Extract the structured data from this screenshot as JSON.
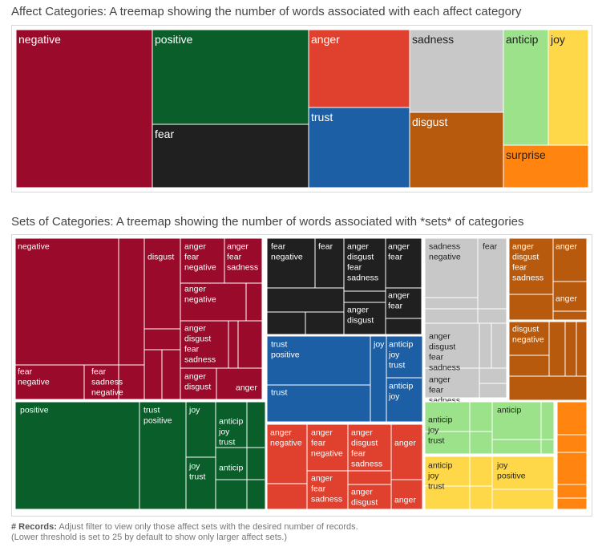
{
  "chart_data": [
    {
      "type": "treemap",
      "title": "Affect Categories: A treemap showing the number of words associated with each affect category",
      "nodes": [
        {
          "label": "negative",
          "color": "#9a0a2a",
          "text_color": "#ffffff",
          "size": 3324
        },
        {
          "label": "positive",
          "color": "#0a5e2a",
          "text_color": "#ffffff",
          "size": 2312
        },
        {
          "label": "fear",
          "color": "#202020",
          "text_color": "#ffffff",
          "size": 1476
        },
        {
          "label": "anger",
          "color": "#e0412f",
          "text_color": "#ffffff",
          "size": 1247
        },
        {
          "label": "trust",
          "color": "#1c5fa5",
          "text_color": "#ffffff",
          "size": 1231
        },
        {
          "label": "sadness",
          "color": "#c8c8c8",
          "text_color": "#222222",
          "size": 1191
        },
        {
          "label": "disgust",
          "color": "#b85a0d",
          "text_color": "#ffffff",
          "size": 1058
        },
        {
          "label": "anticip",
          "color": "#9be28a",
          "text_color": "#222222",
          "size": 839
        },
        {
          "label": "joy",
          "color": "#ffd84a",
          "text_color": "#222222",
          "size": 689
        },
        {
          "label": "surprise",
          "color": "#ff8510",
          "text_color": "#222222",
          "size": 534
        }
      ]
    },
    {
      "type": "treemap",
      "title": "Sets of Categories: A treemap showing the number of words associated with *sets* of categories",
      "groups": [
        {
          "name": "negative",
          "color": "#9a0a2a",
          "text_color": "#ffffff",
          "labels": [
            "negative",
            "disgust",
            "fear negative",
            "fear sadness negative",
            "anger fear negative",
            "anger fear sadness",
            "anger negative",
            "anger disgust fear sadness",
            "anger disgust",
            "anger"
          ]
        },
        {
          "name": "positive",
          "color": "#0a5e2a",
          "text_color": "#ffffff",
          "labels": [
            "positive",
            "trust positive",
            "joy",
            "anticip joy trust",
            "joy trust",
            "anticip"
          ]
        },
        {
          "name": "fear",
          "color": "#202020",
          "text_color": "#ffffff",
          "labels": [
            "fear negative",
            "fear",
            "anger disgust fear sadness",
            "anger fear",
            "anger fear",
            "anger disgust"
          ]
        },
        {
          "name": "trust",
          "color": "#1c5fa5",
          "text_color": "#ffffff",
          "labels": [
            "trust positive",
            "joy",
            "anticip joy trust",
            "trust",
            "anticip joy"
          ]
        },
        {
          "name": "anger",
          "color": "#e0412f",
          "text_color": "#ffffff",
          "labels": [
            "anger negative",
            "anger fear negative",
            "anger disgust fear sadness",
            "anger",
            "anger fear sadness",
            "anger disgust",
            "anger"
          ]
        },
        {
          "name": "sadness",
          "color": "#c8c8c8",
          "text_color": "#222222",
          "labels": [
            "sadness negative",
            "fear",
            "anger disgust fear sadness",
            "anger fear sadness"
          ]
        },
        {
          "name": "disgust",
          "color": "#b85a0d",
          "text_color": "#ffffff",
          "labels": [
            "anger disgust fear sadness",
            "anger",
            "anger",
            "disgust negative"
          ]
        },
        {
          "name": "anticip",
          "color": "#9be28a",
          "text_color": "#222222",
          "labels": [
            "anticip joy trust",
            "anticip"
          ]
        },
        {
          "name": "joy",
          "color": "#ffd84a",
          "text_color": "#222222",
          "labels": [
            "anticip joy trust",
            "joy positive"
          ]
        },
        {
          "name": "surprise",
          "color": "#ff8510",
          "text_color": "#222222",
          "labels": []
        }
      ]
    }
  ],
  "footer": {
    "label": "# Records:",
    "text": "Adjust filter to view only those affect sets with the desired number of records.",
    "note": "(Lower threshold is set to 25 by default to show only larger affect sets.)"
  }
}
